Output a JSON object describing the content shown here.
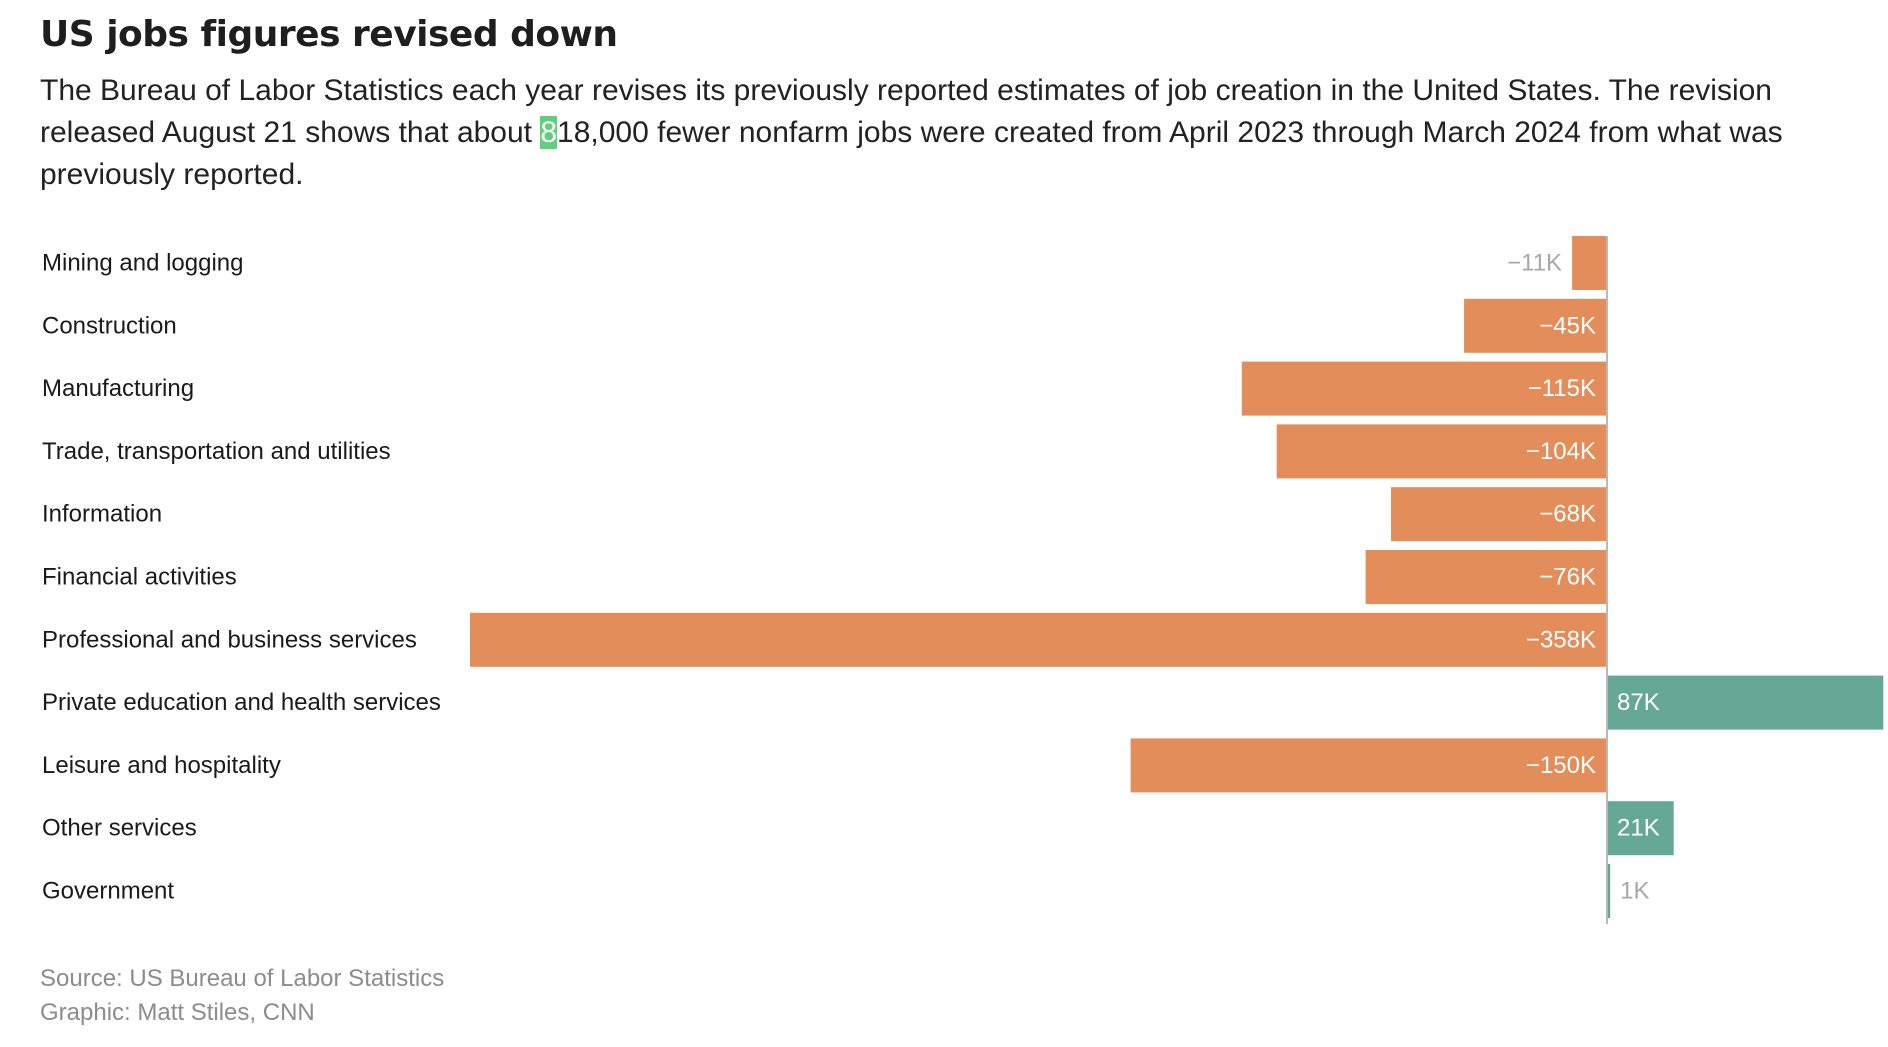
{
  "title": "US jobs figures revised down",
  "description": {
    "before": "The Bureau of Labor Statistics each year revises its previously reported estimates of job creation in the United States. The revision released August 21 shows that about ",
    "highlight": "8",
    "after": "18,000 fewer nonfarm jobs were created from April 2023 through March 2024 from what was previously reported."
  },
  "colors": {
    "negative": "#e38d5a",
    "positive": "#65a896",
    "axis": "#b9b9b9",
    "light_label": "#a8a8a8"
  },
  "chart_data": {
    "type": "bar",
    "orientation": "horizontal",
    "categories": [
      "Mining and logging",
      "Construction",
      "Manufacturing",
      "Trade, transportation and utilities",
      "Information",
      "Financial activities",
      "Professional and business services",
      "Private education and health services",
      "Leisure and hospitality",
      "Other services",
      "Government"
    ],
    "values": [
      -11,
      -45,
      -115,
      -104,
      -68,
      -76,
      -358,
      87,
      -150,
      21,
      1
    ],
    "value_labels": [
      "−11K",
      "−45K",
      "−115K",
      "−104K",
      "−68K",
      "−76K",
      "−358K",
      "87K",
      "−150K",
      "21K",
      "1K"
    ],
    "unit": "thousand jobs",
    "xlim": [
      -358,
      87
    ]
  },
  "footer": {
    "source": "Source: US Bureau of Labor Statistics",
    "credit": "Graphic: Matt Stiles, CNN"
  }
}
